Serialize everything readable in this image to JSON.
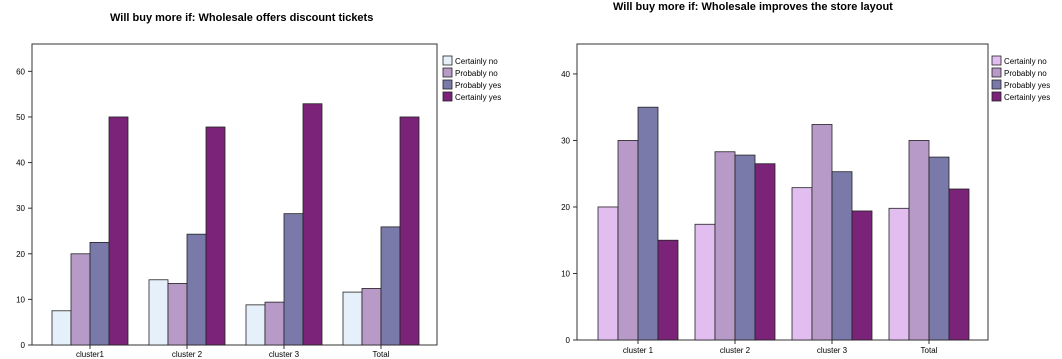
{
  "chart_data": [
    {
      "type": "bar",
      "title": "Will buy more if: Wholesale offers discount tickets",
      "categories": [
        "cluster1",
        "cluster 2",
        "cluster 3",
        "Total"
      ],
      "series": [
        {
          "name": "Certainly no",
          "color": "#e6f0fb",
          "values": [
            7.5,
            14.3,
            8.8,
            11.6
          ]
        },
        {
          "name": "Probably no",
          "color": "#b89ac9",
          "values": [
            20.0,
            13.5,
            9.4,
            12.4
          ]
        },
        {
          "name": "Probably yes",
          "color": "#7a7aaa",
          "values": [
            22.5,
            24.3,
            28.8,
            25.9
          ]
        },
        {
          "name": "Certainly yes",
          "color": "#7b2378",
          "values": [
            50.0,
            47.8,
            52.9,
            50.0
          ]
        }
      ],
      "yticks": [
        0,
        10,
        20,
        30,
        40,
        50,
        60
      ],
      "ylim": [
        0,
        66
      ],
      "legend": "right",
      "grid": false
    },
    {
      "type": "bar",
      "title": "Will buy more if: Wholesale improves the store layout",
      "categories": [
        "cluster 1",
        "cluster 2",
        "cluster 3",
        "Total"
      ],
      "series": [
        {
          "name": "Certainly no",
          "color": "#e2bdf0",
          "values": [
            20.0,
            17.4,
            22.9,
            19.8
          ]
        },
        {
          "name": "Probably no",
          "color": "#b89ac9",
          "values": [
            30.0,
            28.3,
            32.4,
            30.0
          ]
        },
        {
          "name": "Probably yes",
          "color": "#7a7aaa",
          "values": [
            35.0,
            27.8,
            25.3,
            27.5
          ]
        },
        {
          "name": "Certainly yes",
          "color": "#7b2378",
          "values": [
            15.0,
            26.5,
            19.4,
            22.7
          ]
        }
      ],
      "yticks": [
        0,
        10,
        20,
        30,
        40
      ],
      "ylim": [
        0,
        44.5
      ],
      "legend": "right",
      "grid": false
    }
  ]
}
